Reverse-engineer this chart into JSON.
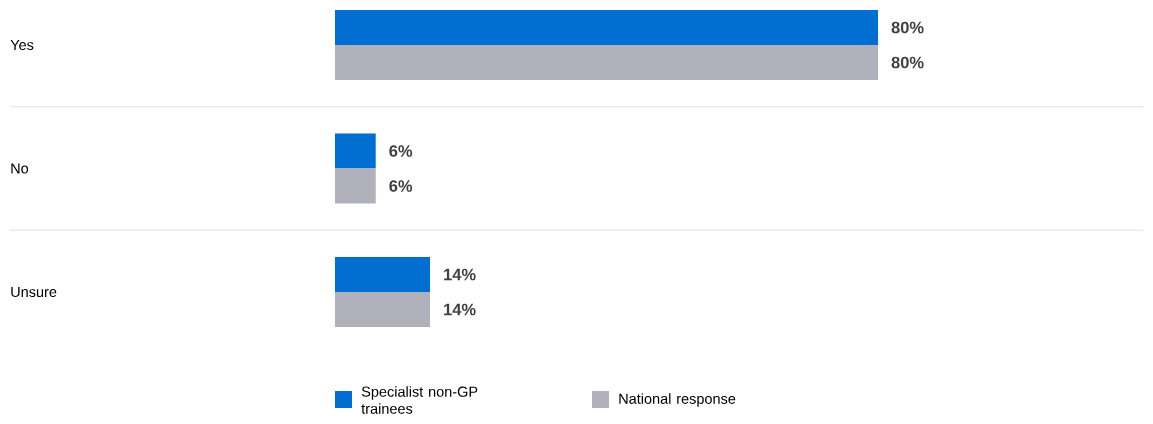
{
  "chart_data": {
    "type": "bar",
    "orientation": "horizontal",
    "categories": [
      "Yes",
      "No",
      "Unsure"
    ],
    "series": [
      {
        "name": "Specialist non-GP trainees",
        "color": "#006fd1",
        "values": [
          80,
          6,
          14
        ],
        "value_labels": [
          "80%",
          "6%",
          "14%"
        ]
      },
      {
        "name": "National response",
        "color": "#b1b1bb",
        "values": [
          80,
          6,
          14
        ],
        "value_labels": [
          "80%",
          "6%",
          "14%"
        ]
      }
    ],
    "grid": "y",
    "legend": "bottom"
  }
}
